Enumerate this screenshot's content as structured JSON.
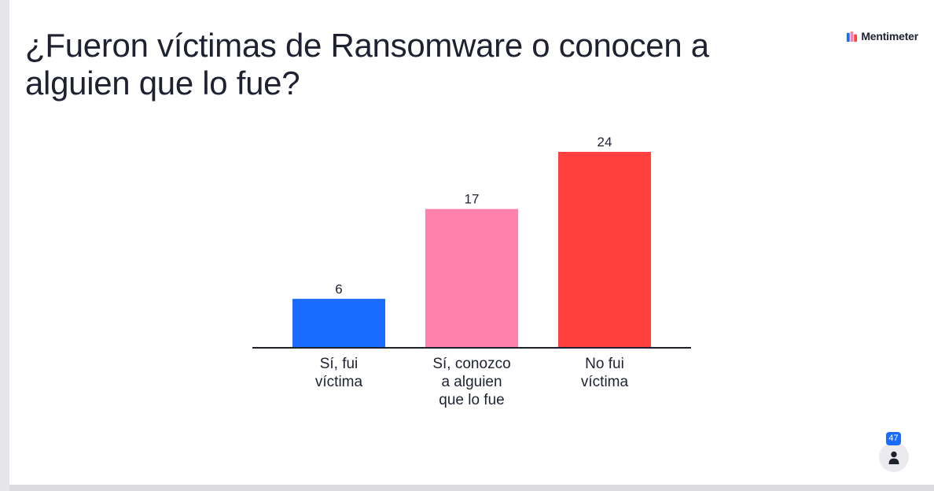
{
  "slide": {
    "title": "¿Fueron víctimas de Ransomware o conocen a alguien que lo fue?",
    "brand_name": "Mentimeter",
    "participants_count": "47"
  },
  "chart_data": {
    "type": "bar",
    "title": "",
    "xlabel": "",
    "ylabel": "",
    "categories": [
      [
        "Sí, fui",
        "víctima"
      ],
      [
        "Sí, conozco",
        "a alguien",
        "que lo fue"
      ],
      [
        "No fui",
        "víctima"
      ]
    ],
    "values": [
      6,
      17,
      24
    ],
    "colors": [
      "#196cff",
      "#ff80ab",
      "#ff403d"
    ],
    "value_labels": true,
    "grid": false,
    "legend": "none"
  },
  "colors": {
    "text": "#1e2230",
    "axis": "#1e2230",
    "badge": "#196cff"
  },
  "icons": {
    "brand": "mentimeter-logo-icon",
    "participants": "person-icon"
  }
}
